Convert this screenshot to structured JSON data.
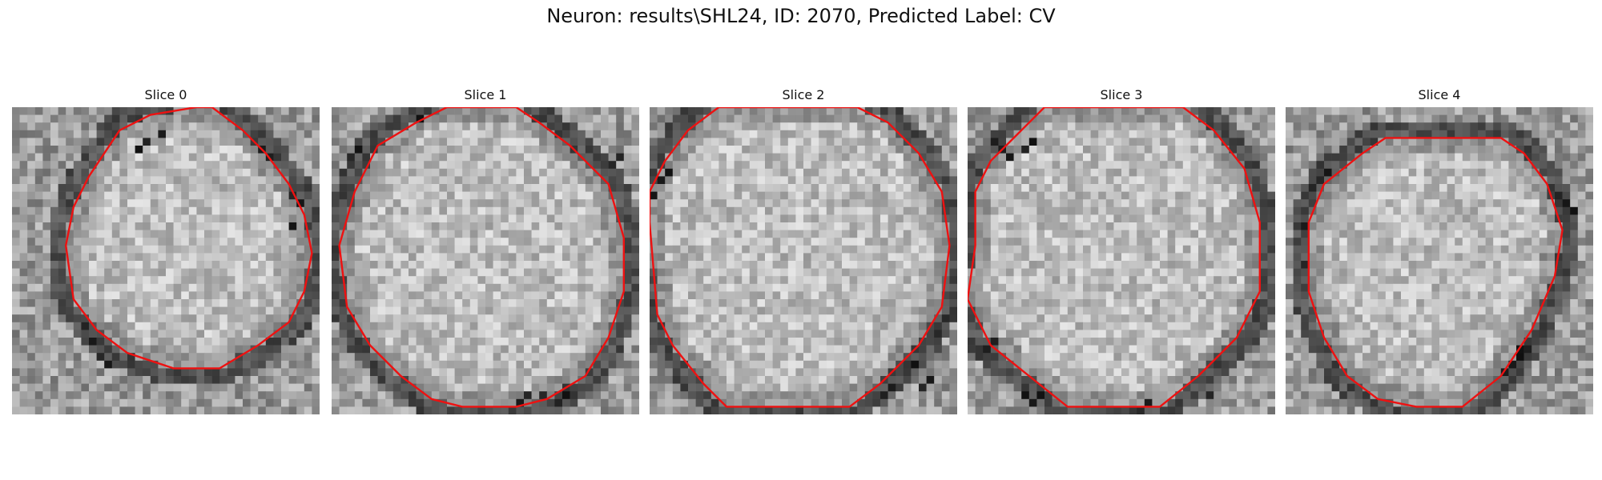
{
  "figure": {
    "title": "Neuron: results\\SHL24, ID: 2070, Predicted Label: CV"
  },
  "colors": {
    "contour": "#ee1111",
    "background": "#ffffff"
  },
  "panels": [
    {
      "title": "Slice 0",
      "seed": 11,
      "contour": [
        [
          24,
          0
        ],
        [
          18,
          1
        ],
        [
          14,
          3
        ],
        [
          12,
          6
        ],
        [
          10,
          9
        ],
        [
          8,
          13
        ],
        [
          7,
          18
        ],
        [
          8,
          25
        ],
        [
          11,
          29
        ],
        [
          15,
          32
        ],
        [
          21,
          34
        ],
        [
          27,
          34
        ],
        [
          32,
          31
        ],
        [
          36,
          28
        ],
        [
          38,
          24
        ],
        [
          39,
          19
        ],
        [
          38,
          14
        ],
        [
          36,
          10
        ],
        [
          33,
          6
        ],
        [
          30,
          3
        ],
        [
          26,
          0
        ]
      ],
      "dark_ring": [
        [
          19,
          3
        ],
        [
          17,
          4
        ],
        [
          16,
          5
        ],
        [
          32,
          5
        ],
        [
          33,
          6
        ],
        [
          36,
          11
        ],
        [
          37,
          12
        ],
        [
          36,
          15
        ],
        [
          9,
          28
        ],
        [
          10,
          30
        ],
        [
          11,
          32
        ],
        [
          12,
          33
        ]
      ]
    },
    {
      "title": "Slice 1",
      "seed": 23,
      "contour": [
        [
          15,
          0
        ],
        [
          11,
          2
        ],
        [
          6,
          5
        ],
        [
          3,
          11
        ],
        [
          1,
          18
        ],
        [
          2,
          26
        ],
        [
          5,
          31
        ],
        [
          9,
          35
        ],
        [
          13,
          38
        ],
        [
          17,
          39
        ],
        [
          24,
          39
        ],
        [
          28,
          38
        ],
        [
          33,
          35
        ],
        [
          36,
          30
        ],
        [
          38,
          24
        ],
        [
          38,
          17
        ],
        [
          36,
          10
        ],
        [
          31,
          5
        ],
        [
          27,
          2
        ],
        [
          24,
          0
        ]
      ],
      "dark_ring": [
        [
          11,
          1
        ],
        [
          3,
          5
        ],
        [
          2,
          6
        ],
        [
          37,
          6
        ],
        [
          36,
          7
        ],
        [
          24,
          38
        ],
        [
          25,
          37
        ],
        [
          29,
          38
        ],
        [
          30,
          37
        ],
        [
          27,
          37
        ]
      ]
    },
    {
      "title": "Slice 2",
      "seed": 37,
      "contour": [
        [
          9,
          0
        ],
        [
          5,
          3
        ],
        [
          2,
          7
        ],
        [
          0,
          11
        ],
        [
          0,
          15
        ],
        [
          1,
          27
        ],
        [
          3,
          31
        ],
        [
          7,
          36
        ],
        [
          10,
          39
        ],
        [
          26,
          39
        ],
        [
          30,
          36
        ],
        [
          35,
          31
        ],
        [
          38,
          26
        ],
        [
          39,
          18
        ],
        [
          38,
          11
        ],
        [
          35,
          6
        ],
        [
          31,
          2
        ],
        [
          27,
          0
        ]
      ],
      "dark_ring": [
        [
          1,
          9
        ],
        [
          2,
          8
        ],
        [
          0,
          11
        ],
        [
          38,
          27
        ],
        [
          37,
          29
        ],
        [
          34,
          33
        ],
        [
          31,
          36
        ],
        [
          30,
          37
        ],
        [
          35,
          36
        ],
        [
          36,
          35
        ]
      ]
    },
    {
      "title": "Slice 3",
      "seed": 53,
      "contour": [
        [
          10,
          0
        ],
        [
          7,
          3
        ],
        [
          3,
          7
        ],
        [
          1,
          11
        ],
        [
          1,
          18
        ],
        [
          0,
          25
        ],
        [
          3,
          31
        ],
        [
          8,
          35
        ],
        [
          13,
          39
        ],
        [
          25,
          39
        ],
        [
          30,
          35
        ],
        [
          35,
          30
        ],
        [
          38,
          24
        ],
        [
          38,
          15
        ],
        [
          36,
          8
        ],
        [
          32,
          3
        ],
        [
          28,
          0
        ]
      ],
      "dark_ring": [
        [
          3,
          4
        ],
        [
          4,
          5
        ],
        [
          5,
          6
        ],
        [
          8,
          4
        ],
        [
          7,
          5
        ],
        [
          7,
          37
        ],
        [
          8,
          38
        ],
        [
          9,
          37
        ],
        [
          22,
          39
        ],
        [
          23,
          38
        ],
        [
          31,
          37
        ],
        [
          3,
          30
        ],
        [
          2,
          31
        ]
      ]
    },
    {
      "title": "Slice 4",
      "seed": 71,
      "contour": [
        [
          13,
          4
        ],
        [
          10,
          6
        ],
        [
          5,
          10
        ],
        [
          3,
          15
        ],
        [
          3,
          24
        ],
        [
          5,
          30
        ],
        [
          8,
          35
        ],
        [
          12,
          38
        ],
        [
          17,
          39
        ],
        [
          23,
          39
        ],
        [
          28,
          35
        ],
        [
          32,
          29
        ],
        [
          35,
          22
        ],
        [
          36,
          16
        ],
        [
          34,
          10
        ],
        [
          31,
          6
        ],
        [
          28,
          4
        ]
      ],
      "dark_ring": [
        [
          5,
          8
        ],
        [
          4,
          9
        ],
        [
          3,
          10
        ],
        [
          2,
          15
        ],
        [
          2,
          20
        ],
        [
          35,
          11
        ],
        [
          36,
          12
        ],
        [
          37,
          13
        ],
        [
          31,
          31
        ],
        [
          30,
          32
        ],
        [
          29,
          33
        ],
        [
          30,
          31
        ],
        [
          28,
          34
        ]
      ]
    }
  ]
}
